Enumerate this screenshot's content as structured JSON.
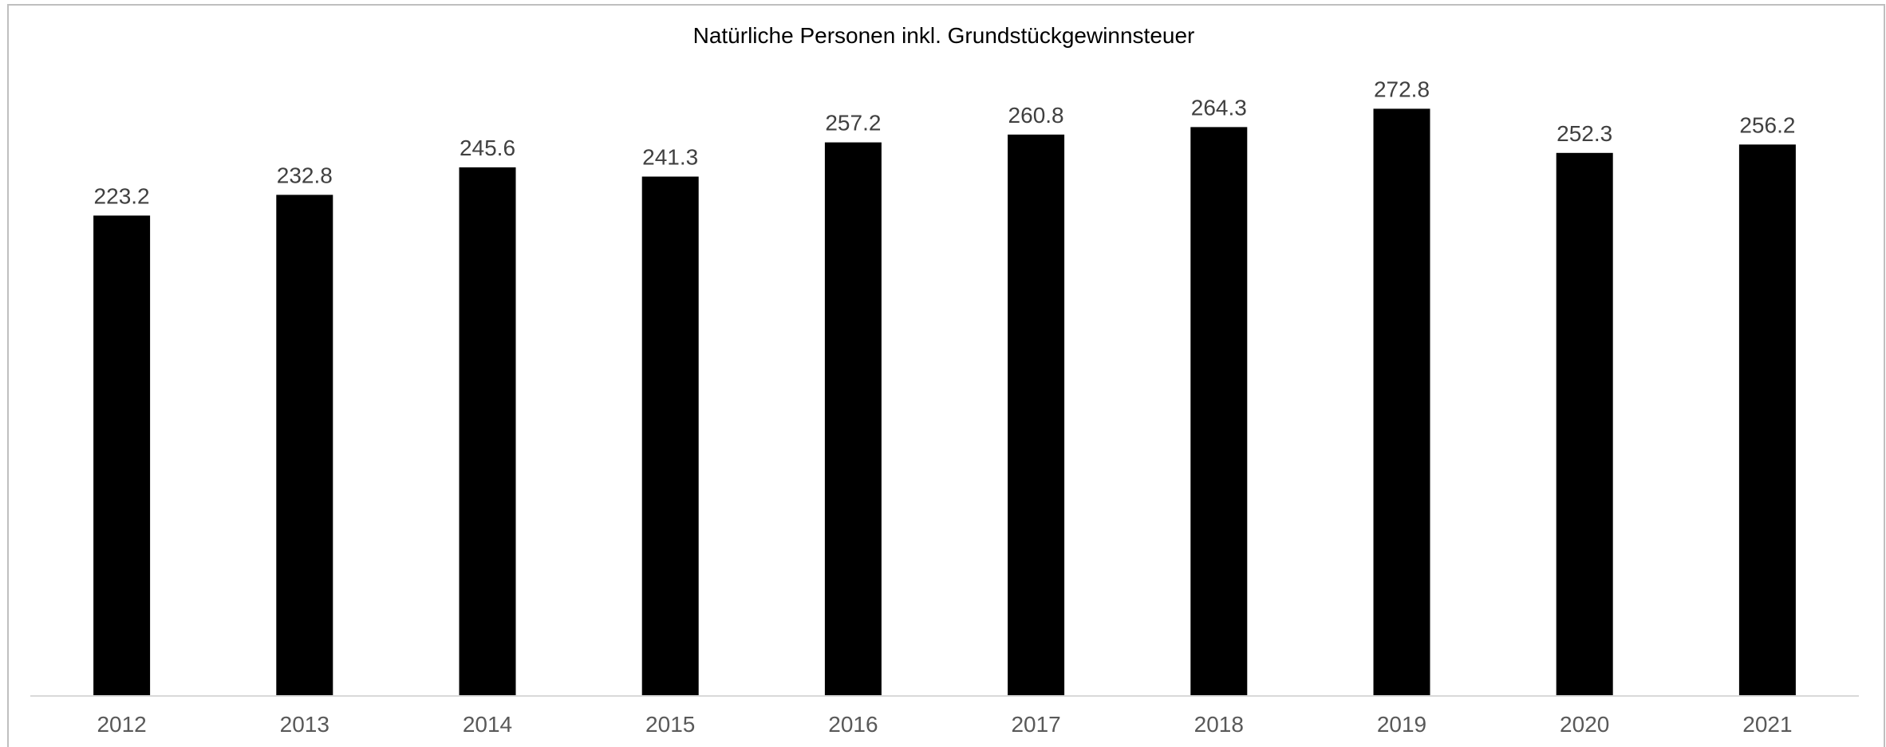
{
  "chart_data": {
    "type": "bar",
    "title": "Natürliche Personen inkl. Grundstückgewinnsteuer",
    "categories": [
      "2012",
      "2013",
      "2014",
      "2015",
      "2016",
      "2017",
      "2018",
      "2019",
      "2020",
      "2021"
    ],
    "values": [
      223.2,
      232.8,
      245.6,
      241.3,
      257.2,
      260.8,
      264.3,
      272.8,
      252.3,
      256.2
    ],
    "data_labels": [
      "223.2",
      "232.8",
      "245.6",
      "241.3",
      "257.2",
      "260.8",
      "264.3",
      "272.8",
      "252.3",
      "256.2"
    ],
    "xlabel": "",
    "ylabel": "",
    "ylim": [
      0,
      300
    ],
    "grid": false,
    "legend": "none",
    "colors": {
      "bar": "#000000",
      "axis": "#d9d9d9",
      "frame": "#bfbfbf",
      "data_label": "#404040",
      "tick_label": "#595959",
      "title": "#000000"
    }
  }
}
